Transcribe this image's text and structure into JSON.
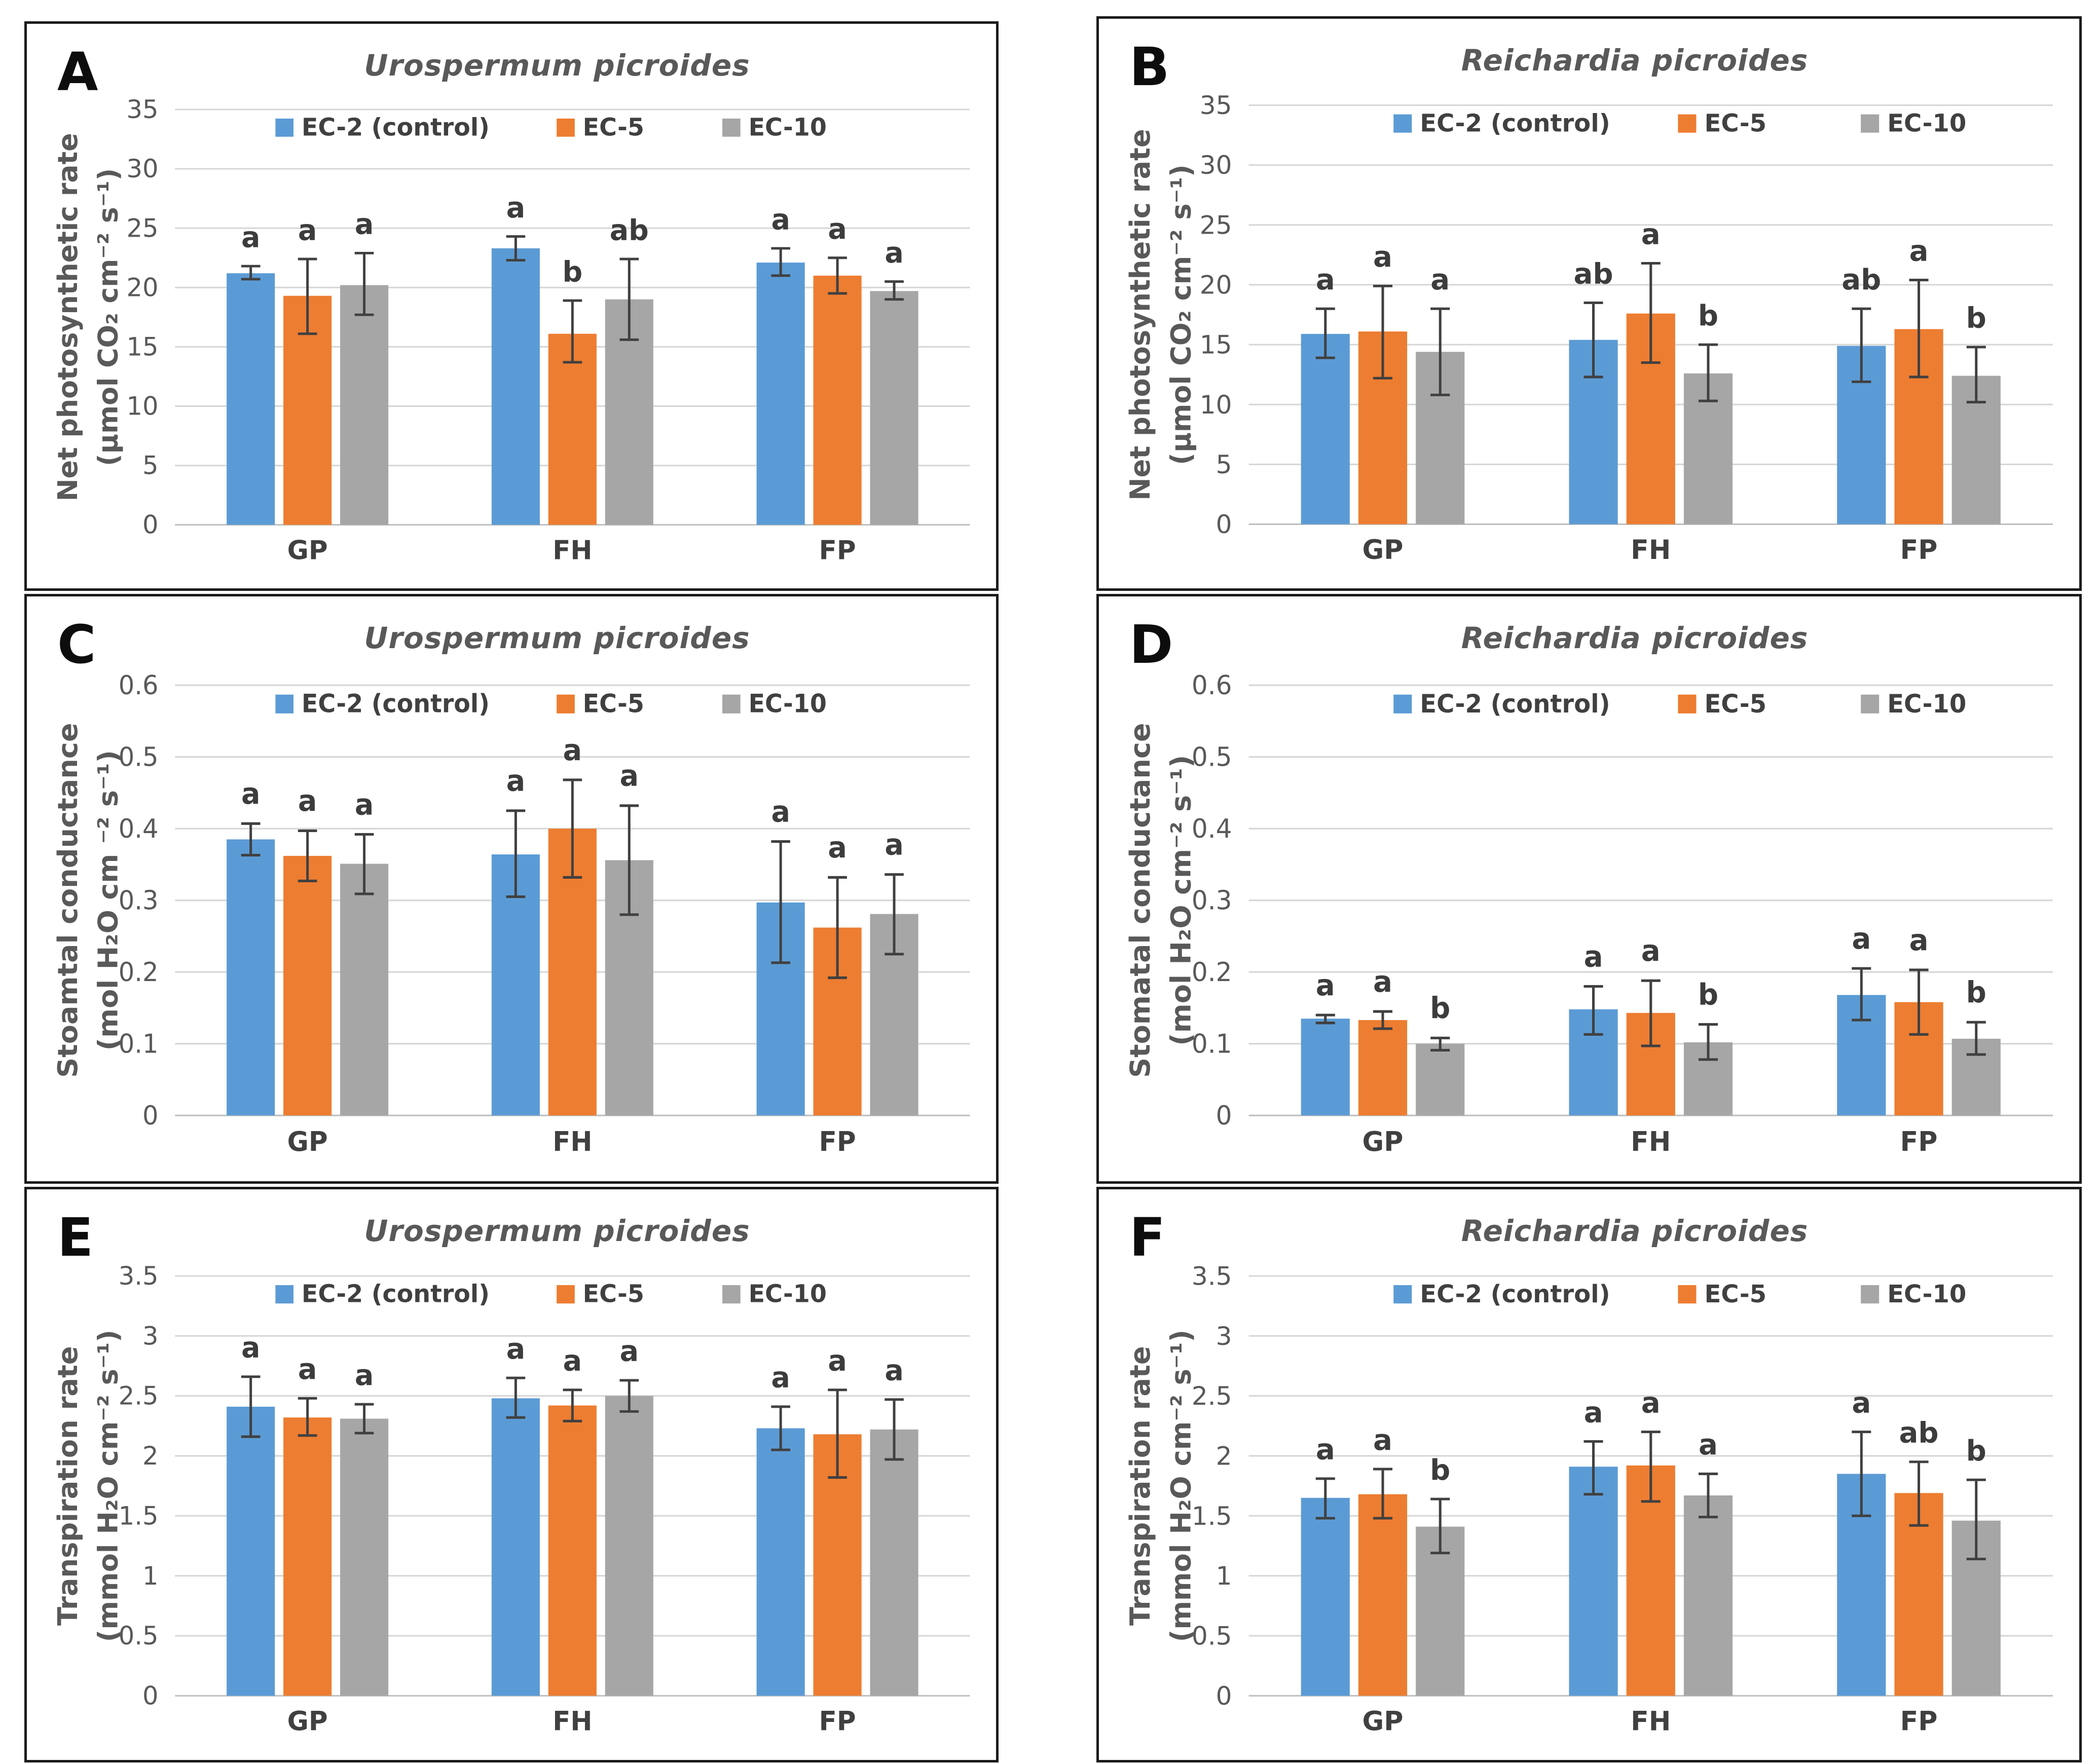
{
  "colors": {
    "bar_blue": "#5B9BD5",
    "bar_orange": "#ED7D31",
    "bar_gray": "#A6A6A6",
    "error_bar": "#404040",
    "gridline": "#D6D6D6",
    "baseline": "#BFBFBF",
    "axis_text": "#595959",
    "label_text": "#404040",
    "letter_text": "#3c3c3c",
    "title_text": "#595959",
    "panel_border": "#1c1c1c"
  },
  "chart_data": [
    {
      "panel_label": "A",
      "type": "bar",
      "title": "Urospermum picroides",
      "ylabel_line1": "Net photosynthetic rate",
      "ylabel_line2": "(μmol CO₂ cm⁻² s⁻¹)",
      "ylim": [
        0,
        35
      ],
      "ytick_step": 5,
      "ytick_labels": [
        "0",
        "5",
        "10",
        "15",
        "20",
        "25",
        "30",
        "35"
      ],
      "categories": [
        "GP",
        "FH",
        "FP"
      ],
      "legend_position": "top-inside",
      "grid": "horizontal",
      "series": [
        {
          "name": "EC-2 (control)",
          "color": "#5B9BD5",
          "values": [
            21.2,
            23.3,
            22.1
          ],
          "err_lo": [
            20.7,
            22.3,
            21.0
          ],
          "err_hi": [
            21.8,
            24.3,
            23.3
          ]
        },
        {
          "name": "EC-5",
          "color": "#ED7D31",
          "values": [
            19.3,
            16.1,
            21.0
          ],
          "err_lo": [
            16.1,
            13.7,
            19.5
          ],
          "err_hi": [
            22.4,
            18.9,
            22.5
          ]
        },
        {
          "name": "EC-10",
          "color": "#A6A6A6",
          "values": [
            20.2,
            19.0,
            19.7
          ],
          "err_lo": [
            17.7,
            15.6,
            19.0
          ],
          "err_hi": [
            22.9,
            22.4,
            20.5
          ]
        }
      ],
      "sig_letters": [
        [
          "a",
          "a",
          "a"
        ],
        [
          "a",
          "b",
          "ab"
        ],
        [
          "a",
          "a",
          "a"
        ]
      ]
    },
    {
      "panel_label": "B",
      "type": "bar",
      "title": "Reichardia picroides",
      "ylabel_line1": "Net photosynthetic rate",
      "ylabel_line2": "(μmol CO₂ cm⁻² s⁻¹)",
      "ylim": [
        0,
        35
      ],
      "ytick_step": 5,
      "ytick_labels": [
        "0",
        "5",
        "10",
        "15",
        "20",
        "25",
        "30",
        "35"
      ],
      "categories": [
        "GP",
        "FH",
        "FP"
      ],
      "legend_position": "top-inside",
      "grid": "horizontal",
      "series": [
        {
          "name": "EC-2 (control)",
          "color": "#5B9BD5",
          "values": [
            15.9,
            15.4,
            14.9
          ],
          "err_lo": [
            13.9,
            12.3,
            11.9
          ],
          "err_hi": [
            18.0,
            18.5,
            18.0
          ]
        },
        {
          "name": "EC-5",
          "color": "#ED7D31",
          "values": [
            16.1,
            17.6,
            16.3
          ],
          "err_lo": [
            12.2,
            13.5,
            12.3
          ],
          "err_hi": [
            19.9,
            21.8,
            20.4
          ]
        },
        {
          "name": "EC-10",
          "color": "#A6A6A6",
          "values": [
            14.4,
            12.6,
            12.4
          ],
          "err_lo": [
            10.8,
            10.3,
            10.2
          ],
          "err_hi": [
            18.0,
            15.0,
            14.8
          ]
        }
      ],
      "sig_letters": [
        [
          "a",
          "a",
          "a"
        ],
        [
          "ab",
          "a",
          "b"
        ],
        [
          "ab",
          "a",
          "b"
        ]
      ]
    },
    {
      "panel_label": "C",
      "type": "bar",
      "title": "Urospermum picroides",
      "ylabel_line1": "Stoamtal conductance",
      "ylabel_line2": "(mol H₂O cm ⁻² s⁻¹)",
      "ylim": [
        0,
        0.6
      ],
      "ytick_step": 0.1,
      "ytick_labels": [
        "0",
        "0.1",
        "0.2",
        "0.3",
        "0.4",
        "0.5",
        "0.6"
      ],
      "categories": [
        "GP",
        "FH",
        "FP"
      ],
      "legend_position": "top-inside",
      "grid": "horizontal",
      "series": [
        {
          "name": "EC-2 (control)",
          "color": "#5B9BD5",
          "values": [
            0.385,
            0.364,
            0.297
          ],
          "err_lo": [
            0.363,
            0.305,
            0.213
          ],
          "err_hi": [
            0.407,
            0.425,
            0.382
          ]
        },
        {
          "name": "EC-5",
          "color": "#ED7D31",
          "values": [
            0.362,
            0.4,
            0.262
          ],
          "err_lo": [
            0.327,
            0.332,
            0.192
          ],
          "err_hi": [
            0.397,
            0.468,
            0.332
          ]
        },
        {
          "name": "EC-10",
          "color": "#A6A6A6",
          "values": [
            0.351,
            0.356,
            0.281
          ],
          "err_lo": [
            0.309,
            0.28,
            0.225
          ],
          "err_hi": [
            0.392,
            0.432,
            0.336
          ]
        }
      ],
      "sig_letters": [
        [
          "a",
          "a",
          "a"
        ],
        [
          "a",
          "a",
          "a"
        ],
        [
          "a",
          "a",
          "a"
        ]
      ]
    },
    {
      "panel_label": "D",
      "type": "bar",
      "title": "Reichardia picroides",
      "ylabel_line1": "Stomatal conductance",
      "ylabel_line2": "(mol H₂O cm⁻² s⁻¹)",
      "ylim": [
        0,
        0.6
      ],
      "ytick_step": 0.1,
      "ytick_labels": [
        "0",
        "0.1",
        "0.2",
        "0.3",
        "0.4",
        "0.5",
        "0.6"
      ],
      "categories": [
        "GP",
        "FH",
        "FP"
      ],
      "legend_position": "top-inside",
      "grid": "horizontal",
      "series": [
        {
          "name": "EC-2 (control)",
          "color": "#5B9BD5",
          "values": [
            0.135,
            0.148,
            0.168
          ],
          "err_lo": [
            0.129,
            0.113,
            0.133
          ],
          "err_hi": [
            0.14,
            0.18,
            0.205
          ]
        },
        {
          "name": "EC-5",
          "color": "#ED7D31",
          "values": [
            0.133,
            0.143,
            0.158
          ],
          "err_lo": [
            0.121,
            0.097,
            0.113
          ],
          "err_hi": [
            0.145,
            0.188,
            0.203
          ]
        },
        {
          "name": "EC-10",
          "color": "#A6A6A6",
          "values": [
            0.1,
            0.102,
            0.107
          ],
          "err_lo": [
            0.091,
            0.078,
            0.085
          ],
          "err_hi": [
            0.108,
            0.127,
            0.13
          ]
        }
      ],
      "sig_letters": [
        [
          "a",
          "a",
          "b"
        ],
        [
          "a",
          "a",
          "b"
        ],
        [
          "a",
          "a",
          "b"
        ]
      ]
    },
    {
      "panel_label": "E",
      "type": "bar",
      "title": "Urospermum picroides",
      "ylabel_line1": "Transpiration rate",
      "ylabel_line2": "(mmol H₂O cm⁻² s⁻¹)",
      "ylim": [
        0,
        3.5
      ],
      "ytick_step": 0.5,
      "ytick_labels": [
        "0",
        "0.5",
        "1",
        "1.5",
        "2",
        "2.5",
        "3",
        "3.5"
      ],
      "categories": [
        "GP",
        "FH",
        "FP"
      ],
      "legend_position": "top-inside",
      "grid": "horizontal",
      "series": [
        {
          "name": "EC-2 (control)",
          "color": "#5B9BD5",
          "values": [
            2.41,
            2.48,
            2.23
          ],
          "err_lo": [
            2.16,
            2.32,
            2.05
          ],
          "err_hi": [
            2.66,
            2.65,
            2.41
          ]
        },
        {
          "name": "EC-5",
          "color": "#ED7D31",
          "values": [
            2.32,
            2.42,
            2.18
          ],
          "err_lo": [
            2.17,
            2.29,
            1.82
          ],
          "err_hi": [
            2.48,
            2.55,
            2.55
          ]
        },
        {
          "name": "EC-10",
          "color": "#A6A6A6",
          "values": [
            2.31,
            2.5,
            2.22
          ],
          "err_lo": [
            2.19,
            2.37,
            1.97
          ],
          "err_hi": [
            2.43,
            2.63,
            2.47
          ]
        }
      ],
      "sig_letters": [
        [
          "a",
          "a",
          "a"
        ],
        [
          "a",
          "a",
          "a"
        ],
        [
          "a",
          "a",
          "a"
        ]
      ]
    },
    {
      "panel_label": "F",
      "type": "bar",
      "title": "Reichardia picroides",
      "ylabel_line1": "Transpiration rate",
      "ylabel_line2": "(mmol H₂O cm⁻² s⁻¹)",
      "ylim": [
        0,
        3.5
      ],
      "ytick_step": 0.5,
      "ytick_labels": [
        "0",
        "0.5",
        "1",
        "1.5",
        "2",
        "2.5",
        "3",
        "3.5"
      ],
      "categories": [
        "GP",
        "FH",
        "FP"
      ],
      "legend_position": "top-inside",
      "grid": "horizontal",
      "series": [
        {
          "name": "EC-2 (control)",
          "color": "#5B9BD5",
          "values": [
            1.65,
            1.91,
            1.85
          ],
          "err_lo": [
            1.48,
            1.68,
            1.5
          ],
          "err_hi": [
            1.81,
            2.12,
            2.2
          ]
        },
        {
          "name": "EC-5",
          "color": "#ED7D31",
          "values": [
            1.68,
            1.92,
            1.69
          ],
          "err_lo": [
            1.48,
            1.62,
            1.42
          ],
          "err_hi": [
            1.89,
            2.2,
            1.95
          ]
        },
        {
          "name": "EC-10",
          "color": "#A6A6A6",
          "values": [
            1.41,
            1.67,
            1.46
          ],
          "err_lo": [
            1.19,
            1.49,
            1.14
          ],
          "err_hi": [
            1.64,
            1.85,
            1.8
          ]
        }
      ],
      "sig_letters": [
        [
          "a",
          "a",
          "b"
        ],
        [
          "a",
          "a",
          "a"
        ],
        [
          "a",
          "ab",
          "b"
        ]
      ]
    }
  ]
}
